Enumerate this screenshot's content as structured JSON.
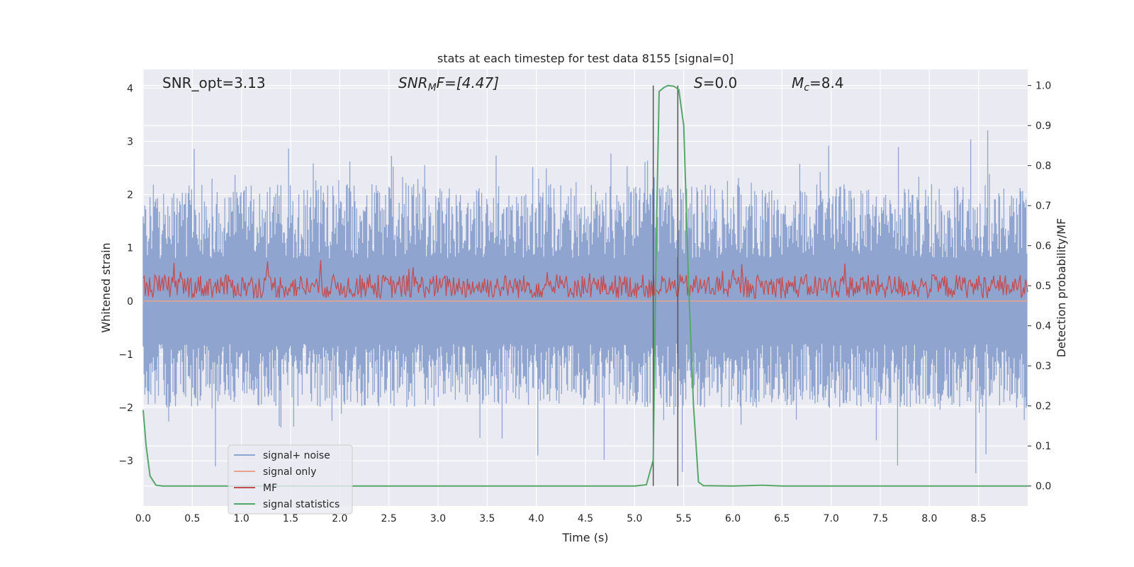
{
  "chart_data": {
    "type": "line",
    "title": "stats at each timestep for test data 8155 [signal=0]",
    "xlabel": "Time (s)",
    "ylabel_left": "Whitened strain",
    "ylabel_right": "Detection probability/MF",
    "xlim": [
      0,
      9.0
    ],
    "ylim_left": [
      -3.85,
      4.35
    ],
    "ylim_right": [
      -0.05,
      1.04
    ],
    "x_ticks": [
      "0.0",
      "0.5",
      "1.0",
      "1.5",
      "2.0",
      "2.5",
      "3.0",
      "3.5",
      "4.0",
      "4.5",
      "5.0",
      "5.5",
      "6.0",
      "6.5",
      "7.0",
      "7.5",
      "8.0",
      "8.5"
    ],
    "y_left_ticks": [
      "4",
      "3",
      "2",
      "1",
      "0",
      "−1",
      "−2",
      "−3"
    ],
    "y_right_ticks": [
      "1.0",
      "0.9",
      "0.8",
      "0.7",
      "0.6",
      "0.5",
      "0.4",
      "0.3",
      "0.2",
      "0.1",
      "0.0"
    ],
    "grid": true,
    "legend_position": "lower-left",
    "annotations": {
      "snr_opt": "SNR_opt=3.13",
      "snr_mf_base": "SNR",
      "snr_mf_sub": "M",
      "snr_mf_rest": "F=[4.47]",
      "s_italic": "S",
      "s_rest": "=0.0",
      "mc_italic": "M",
      "mc_sub": "c",
      "mc_rest": "=8.4"
    },
    "vertical_lines_x": [
      5.19,
      5.44
    ],
    "series": [
      {
        "name": "signal+ noise",
        "color": "#8fa5cf",
        "axis": "left",
        "description_range": [
          -3.6,
          4.0
        ]
      },
      {
        "name": "signal only",
        "color": "#e8a48a",
        "axis": "left",
        "values_constant": 0.0
      },
      {
        "name": "MF",
        "color": "#c44e52",
        "axis": "left",
        "description_range": [
          0.0,
          1.0
        ]
      },
      {
        "name": "signal statistics",
        "color": "#55a868",
        "axis": "right",
        "x": [
          0.0,
          0.03,
          0.07,
          0.13,
          0.2,
          0.5,
          1.0,
          2.0,
          3.0,
          4.0,
          5.0,
          5.12,
          5.19,
          5.22,
          5.25,
          5.3,
          5.34,
          5.4,
          5.45,
          5.5,
          5.55,
          5.6,
          5.65,
          5.7,
          6.0,
          6.3,
          6.5,
          7.0,
          8.0,
          9.0
        ],
        "y": [
          0.19,
          0.1,
          0.025,
          0.002,
          0.0,
          0.0,
          0.0,
          0.0,
          0.0,
          0.0,
          0.0,
          0.003,
          0.065,
          0.6,
          0.985,
          0.995,
          1.0,
          0.998,
          0.99,
          0.9,
          0.5,
          0.2,
          0.01,
          0.001,
          0.0,
          0.002,
          0.0,
          0.0,
          0.0,
          0.0
        ]
      }
    ]
  }
}
